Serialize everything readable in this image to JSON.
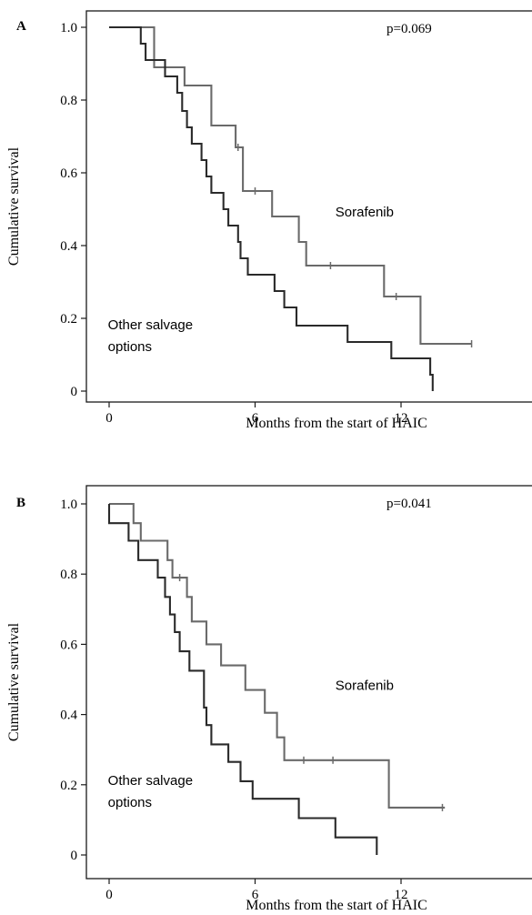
{
  "chart_data": [
    {
      "type": "line",
      "panel": "A",
      "p_value": "p=0.069",
      "xlabel": "Months from the start of HAIC",
      "ylabel": "Cumulative survival",
      "xlim": [
        -1,
        17.5
      ],
      "ylim": [
        -0.05,
        1.05
      ],
      "x_ticks": [
        0,
        6,
        12
      ],
      "x_tick_labels": [
        "0",
        "6",
        "12"
      ],
      "y_ticks": [
        0,
        0.2,
        0.4,
        0.6,
        0.8,
        1.0
      ],
      "y_tick_labels": [
        "0",
        "0.2",
        "0.4",
        "0.6",
        "0.8",
        "1.0"
      ],
      "series": [
        {
          "name": "Sorafenib",
          "color": "#6a6a6a",
          "label_at": [
            9.3,
            0.48
          ],
          "points": [
            [
              0,
              1.0
            ],
            [
              1.85,
              1.0
            ],
            [
              1.85,
              0.89
            ],
            [
              3.1,
              0.89
            ],
            [
              3.1,
              0.84
            ],
            [
              4.2,
              0.84
            ],
            [
              4.2,
              0.73
            ],
            [
              5.2,
              0.73
            ],
            [
              5.2,
              0.67
            ],
            [
              5.5,
              0.67
            ],
            [
              5.5,
              0.55
            ],
            [
              6.7,
              0.55
            ],
            [
              6.7,
              0.48
            ],
            [
              7.8,
              0.48
            ],
            [
              7.8,
              0.41
            ],
            [
              8.1,
              0.41
            ],
            [
              8.1,
              0.345
            ],
            [
              11.3,
              0.345
            ],
            [
              11.3,
              0.26
            ],
            [
              12.8,
              0.26
            ],
            [
              12.8,
              0.13
            ],
            [
              14.9,
              0.13
            ]
          ],
          "censor_times": [
            5.3,
            6.0,
            9.1,
            11.8,
            14.9
          ]
        },
        {
          "name": "Other salvage options",
          "color": "#2a2a2a",
          "label_at": [
            -0.05,
            0.17
          ],
          "label_lines": [
            "Other salvage",
            "options"
          ],
          "points": [
            [
              0,
              1.0
            ],
            [
              1.3,
              1.0
            ],
            [
              1.3,
              0.955
            ],
            [
              1.5,
              0.955
            ],
            [
              1.5,
              0.91
            ],
            [
              2.3,
              0.91
            ],
            [
              2.3,
              0.865
            ],
            [
              2.8,
              0.865
            ],
            [
              2.8,
              0.82
            ],
            [
              3.0,
              0.82
            ],
            [
              3.0,
              0.77
            ],
            [
              3.2,
              0.77
            ],
            [
              3.2,
              0.725
            ],
            [
              3.4,
              0.725
            ],
            [
              3.4,
              0.68
            ],
            [
              3.8,
              0.68
            ],
            [
              3.8,
              0.635
            ],
            [
              4.0,
              0.635
            ],
            [
              4.0,
              0.59
            ],
            [
              4.2,
              0.59
            ],
            [
              4.2,
              0.545
            ],
            [
              4.7,
              0.545
            ],
            [
              4.7,
              0.5
            ],
            [
              4.9,
              0.5
            ],
            [
              4.9,
              0.455
            ],
            [
              5.3,
              0.455
            ],
            [
              5.3,
              0.41
            ],
            [
              5.4,
              0.41
            ],
            [
              5.4,
              0.365
            ],
            [
              5.7,
              0.365
            ],
            [
              5.7,
              0.32
            ],
            [
              6.8,
              0.32
            ],
            [
              6.8,
              0.275
            ],
            [
              7.2,
              0.275
            ],
            [
              7.2,
              0.23
            ],
            [
              7.7,
              0.23
            ],
            [
              7.7,
              0.18
            ],
            [
              9.8,
              0.18
            ],
            [
              9.8,
              0.135
            ],
            [
              11.6,
              0.135
            ],
            [
              11.6,
              0.09
            ],
            [
              13.2,
              0.09
            ],
            [
              13.2,
              0.045
            ],
            [
              13.3,
              0.045
            ],
            [
              13.3,
              0.0
            ]
          ],
          "censor_times": []
        }
      ]
    },
    {
      "type": "line",
      "panel": "B",
      "p_value": "p=0.041",
      "xlabel": "Months from the start of HAIC",
      "ylabel": "Cumulative survival",
      "xlim": [
        -1,
        17.5
      ],
      "ylim": [
        -0.05,
        1.05
      ],
      "x_ticks": [
        0,
        6,
        12
      ],
      "x_tick_labels": [
        "0",
        "6",
        "12"
      ],
      "y_ticks": [
        0,
        0.2,
        0.4,
        0.6,
        0.8,
        1.0
      ],
      "y_tick_labels": [
        "0",
        "0.2",
        "0.4",
        "0.6",
        "0.8",
        "1.0"
      ],
      "series": [
        {
          "name": "Sorafenib",
          "color": "#6a6a6a",
          "label_at": [
            9.3,
            0.47
          ],
          "points": [
            [
              0,
              1.0
            ],
            [
              1.0,
              1.0
            ],
            [
              1.0,
              0.945
            ],
            [
              1.3,
              0.945
            ],
            [
              1.3,
              0.895
            ],
            [
              2.4,
              0.895
            ],
            [
              2.4,
              0.84
            ],
            [
              2.6,
              0.84
            ],
            [
              2.6,
              0.79
            ],
            [
              3.2,
              0.79
            ],
            [
              3.2,
              0.735
            ],
            [
              3.4,
              0.735
            ],
            [
              3.4,
              0.665
            ],
            [
              4.0,
              0.665
            ],
            [
              4.0,
              0.6
            ],
            [
              4.6,
              0.6
            ],
            [
              4.6,
              0.54
            ],
            [
              5.6,
              0.54
            ],
            [
              5.6,
              0.47
            ],
            [
              6.4,
              0.47
            ],
            [
              6.4,
              0.405
            ],
            [
              6.9,
              0.405
            ],
            [
              6.9,
              0.335
            ],
            [
              7.2,
              0.335
            ],
            [
              7.2,
              0.27
            ],
            [
              11.5,
              0.27
            ],
            [
              11.5,
              0.135
            ],
            [
              13.8,
              0.135
            ]
          ],
          "censor_times": [
            2.9,
            8.0,
            9.2,
            13.7
          ]
        },
        {
          "name": "Other salvage options",
          "color": "#2a2a2a",
          "label_at": [
            -0.05,
            0.2
          ],
          "label_lines": [
            "Other salvage",
            "options"
          ],
          "points": [
            [
              0,
              1.0
            ],
            [
              0,
              0.945
            ],
            [
              0.8,
              0.945
            ],
            [
              0.8,
              0.895
            ],
            [
              1.2,
              0.895
            ],
            [
              1.2,
              0.84
            ],
            [
              2.0,
              0.84
            ],
            [
              2.0,
              0.79
            ],
            [
              2.3,
              0.79
            ],
            [
              2.3,
              0.735
            ],
            [
              2.5,
              0.735
            ],
            [
              2.5,
              0.685
            ],
            [
              2.7,
              0.685
            ],
            [
              2.7,
              0.635
            ],
            [
              2.9,
              0.635
            ],
            [
              2.9,
              0.58
            ],
            [
              3.3,
              0.58
            ],
            [
              3.3,
              0.525
            ],
            [
              3.9,
              0.525
            ],
            [
              3.9,
              0.42
            ],
            [
              4.0,
              0.42
            ],
            [
              4.0,
              0.37
            ],
            [
              4.2,
              0.37
            ],
            [
              4.2,
              0.315
            ],
            [
              4.9,
              0.315
            ],
            [
              4.9,
              0.265
            ],
            [
              5.4,
              0.265
            ],
            [
              5.4,
              0.21
            ],
            [
              5.9,
              0.21
            ],
            [
              5.9,
              0.16
            ],
            [
              7.8,
              0.16
            ],
            [
              7.8,
              0.105
            ],
            [
              9.3,
              0.105
            ],
            [
              9.3,
              0.05
            ],
            [
              11.0,
              0.05
            ],
            [
              11.0,
              0.0
            ]
          ],
          "censor_times": []
        }
      ]
    }
  ]
}
